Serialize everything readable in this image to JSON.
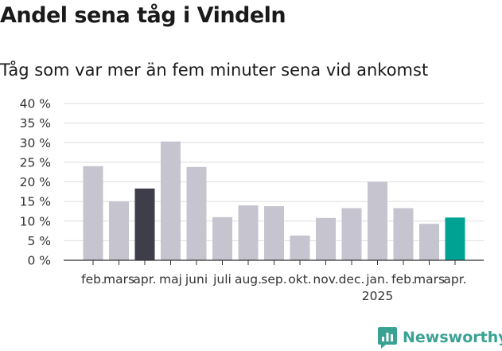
{
  "chart_data": {
    "type": "bar",
    "title": "Andel sena tåg i Vindeln",
    "subtitle": "Tåg som var mer än fem minuter sena vid ankomst",
    "categories": [
      "feb.",
      "mars",
      "apr.",
      "maj",
      "juni",
      "juli",
      "aug.",
      "sep.",
      "okt.",
      "nov.",
      "dec.",
      "jan.",
      "feb.",
      "mars",
      "apr."
    ],
    "year_labels": [
      {
        "index": 11,
        "label": "2025"
      }
    ],
    "values": [
      24,
      15,
      18.3,
      30.3,
      23.8,
      11,
      14,
      13.8,
      6.3,
      10.8,
      13.3,
      20,
      13.3,
      9.3,
      10.9
    ],
    "colors": [
      "#c6c4cf",
      "#c6c4cf",
      "#3e3d4a",
      "#c6c4cf",
      "#c6c4cf",
      "#c6c4cf",
      "#c6c4cf",
      "#c6c4cf",
      "#c6c4cf",
      "#c6c4cf",
      "#c6c4cf",
      "#c6c4cf",
      "#c6c4cf",
      "#c6c4cf",
      "#00a393"
    ],
    "yticks": [
      "0 %",
      "5 %",
      "10 %",
      "15 %",
      "20 %",
      "25 %",
      "30 %",
      "35 %",
      "40 %"
    ],
    "ylim": [
      0,
      40
    ],
    "grid": true,
    "legend": "none"
  },
  "brand": {
    "name": "Newsworthy",
    "icon": "newsworthy-logo-icon",
    "color": "#3aa293"
  }
}
